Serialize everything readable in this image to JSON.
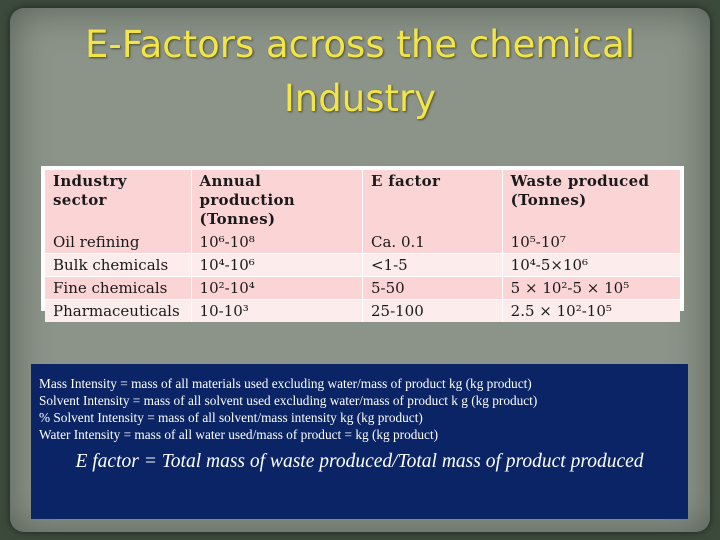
{
  "slide": {
    "title": "E-Factors across the chemical Industry"
  },
  "table": {
    "headers": [
      "Industry sector",
      "Annual production (Tonnes)",
      "E factor",
      "Waste produced (Tonnes)"
    ],
    "rows": [
      [
        "Oil refining",
        "10⁶-10⁸",
        "Ca. 0.1",
        "10⁵-10⁷"
      ],
      [
        "Bulk chemicals",
        "10⁴-10⁶",
        "<1-5",
        "10⁴-5×10⁶"
      ],
      [
        "Fine chemicals",
        "10²-10⁴",
        "5-50",
        "5 × 10²-5 × 10⁵"
      ],
      [
        "Pharmaceuticals",
        "10-10³",
        "25-100",
        "2.5 × 10²-10⁵"
      ]
    ]
  },
  "definitions": {
    "lines": [
      "Mass Intensity = mass of all materials used excluding water/mass of product kg (kg product)",
      "Solvent Intensity = mass of all solvent used excluding water/mass of product k g (kg product)",
      "% Solvent Intensity = mass of all solvent/mass intensity kg (kg product)",
      "Water Intensity = mass of all water used/mass of product = kg (kg product)"
    ],
    "e_factor_formula": "E factor = Total mass of waste produced/Total mass of product produced"
  },
  "colors": {
    "title": "#f2e54a",
    "slide_background": "#8c948a",
    "info_box": "#0a2466",
    "table_header": "#fbd4d6"
  }
}
